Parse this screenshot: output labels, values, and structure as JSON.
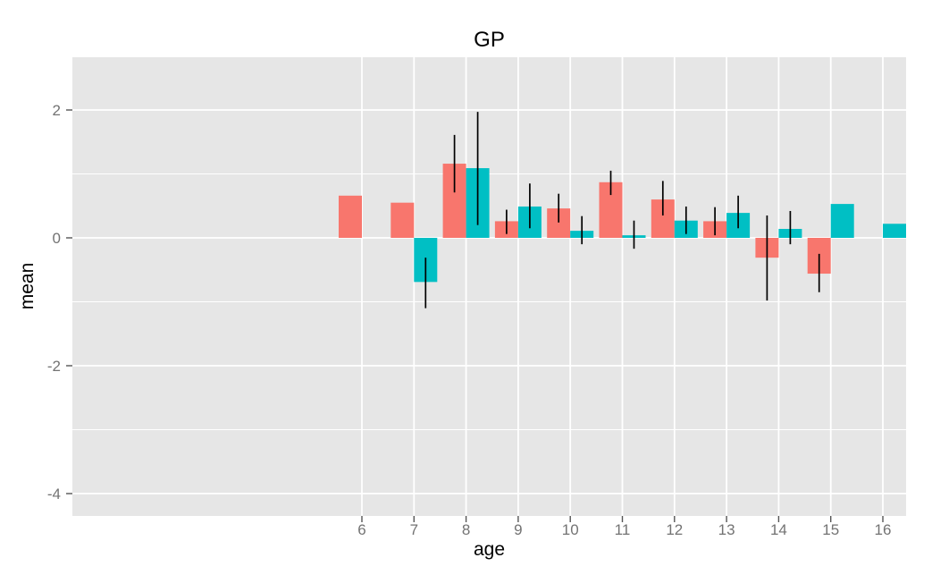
{
  "chart_data": {
    "type": "bar",
    "title": "GP",
    "xlabel": "age",
    "ylabel": "mean",
    "legend": "none",
    "grid": true,
    "x_ticks": [
      6,
      7,
      8,
      9,
      10,
      11,
      12,
      13,
      14,
      15,
      16
    ],
    "y_ticks": [
      2,
      0,
      -2,
      -4
    ],
    "y_minor_gridlines": [
      1,
      -1,
      -3
    ],
    "xlim": [
      0.4,
      16.45
    ],
    "ylim": [
      -4.35,
      2.83
    ],
    "panel_background": "#E6E6E6",
    "gridline_color": "#FFFFFF",
    "error_bar_color": "#000000",
    "tick_mark_color": "#555555",
    "tick_label_color": "#737373",
    "title_color": "#000000",
    "axis_title_color": "#000000",
    "series": [
      {
        "name": "red",
        "color": "#F8766D",
        "points": [
          {
            "x": 6,
            "mean": 0.66,
            "ymin": null,
            "ymax": null
          },
          {
            "x": 7,
            "mean": 0.55,
            "ymin": null,
            "ymax": null
          },
          {
            "x": 8,
            "mean": 1.16,
            "ymin": 0.71,
            "ymax": 1.61
          },
          {
            "x": 9,
            "mean": 0.26,
            "ymin": 0.06,
            "ymax": 0.44
          },
          {
            "x": 10,
            "mean": 0.46,
            "ymin": 0.24,
            "ymax": 0.69
          },
          {
            "x": 11,
            "mean": 0.87,
            "ymin": 0.67,
            "ymax": 1.05
          },
          {
            "x": 12,
            "mean": 0.6,
            "ymin": 0.35,
            "ymax": 0.89
          },
          {
            "x": 13,
            "mean": 0.26,
            "ymin": 0.04,
            "ymax": 0.48
          },
          {
            "x": 14,
            "mean": -0.31,
            "ymin": -0.98,
            "ymax": 0.35
          },
          {
            "x": 15,
            "mean": -0.56,
            "ymin": -0.85,
            "ymax": -0.25
          }
        ]
      },
      {
        "name": "teal",
        "color": "#00BFC4",
        "points": [
          {
            "x": 7,
            "mean": -0.69,
            "ymin": -1.1,
            "ymax": -0.31
          },
          {
            "x": 8,
            "mean": 1.09,
            "ymin": 0.2,
            "ymax": 1.97
          },
          {
            "x": 9,
            "mean": 0.49,
            "ymin": 0.15,
            "ymax": 0.85
          },
          {
            "x": 10,
            "mean": 0.11,
            "ymin": -0.1,
            "ymax": 0.34
          },
          {
            "x": 11,
            "mean": 0.04,
            "ymin": -0.17,
            "ymax": 0.27
          },
          {
            "x": 12,
            "mean": 0.27,
            "ymin": 0.06,
            "ymax": 0.49
          },
          {
            "x": 13,
            "mean": 0.39,
            "ymin": 0.15,
            "ymax": 0.66
          },
          {
            "x": 14,
            "mean": 0.14,
            "ymin": -0.1,
            "ymax": 0.42
          },
          {
            "x": 15,
            "mean": 0.53,
            "ymin": null,
            "ymax": null
          },
          {
            "x": 16,
            "mean": 0.22,
            "ymin": null,
            "ymax": null
          }
        ]
      }
    ]
  }
}
